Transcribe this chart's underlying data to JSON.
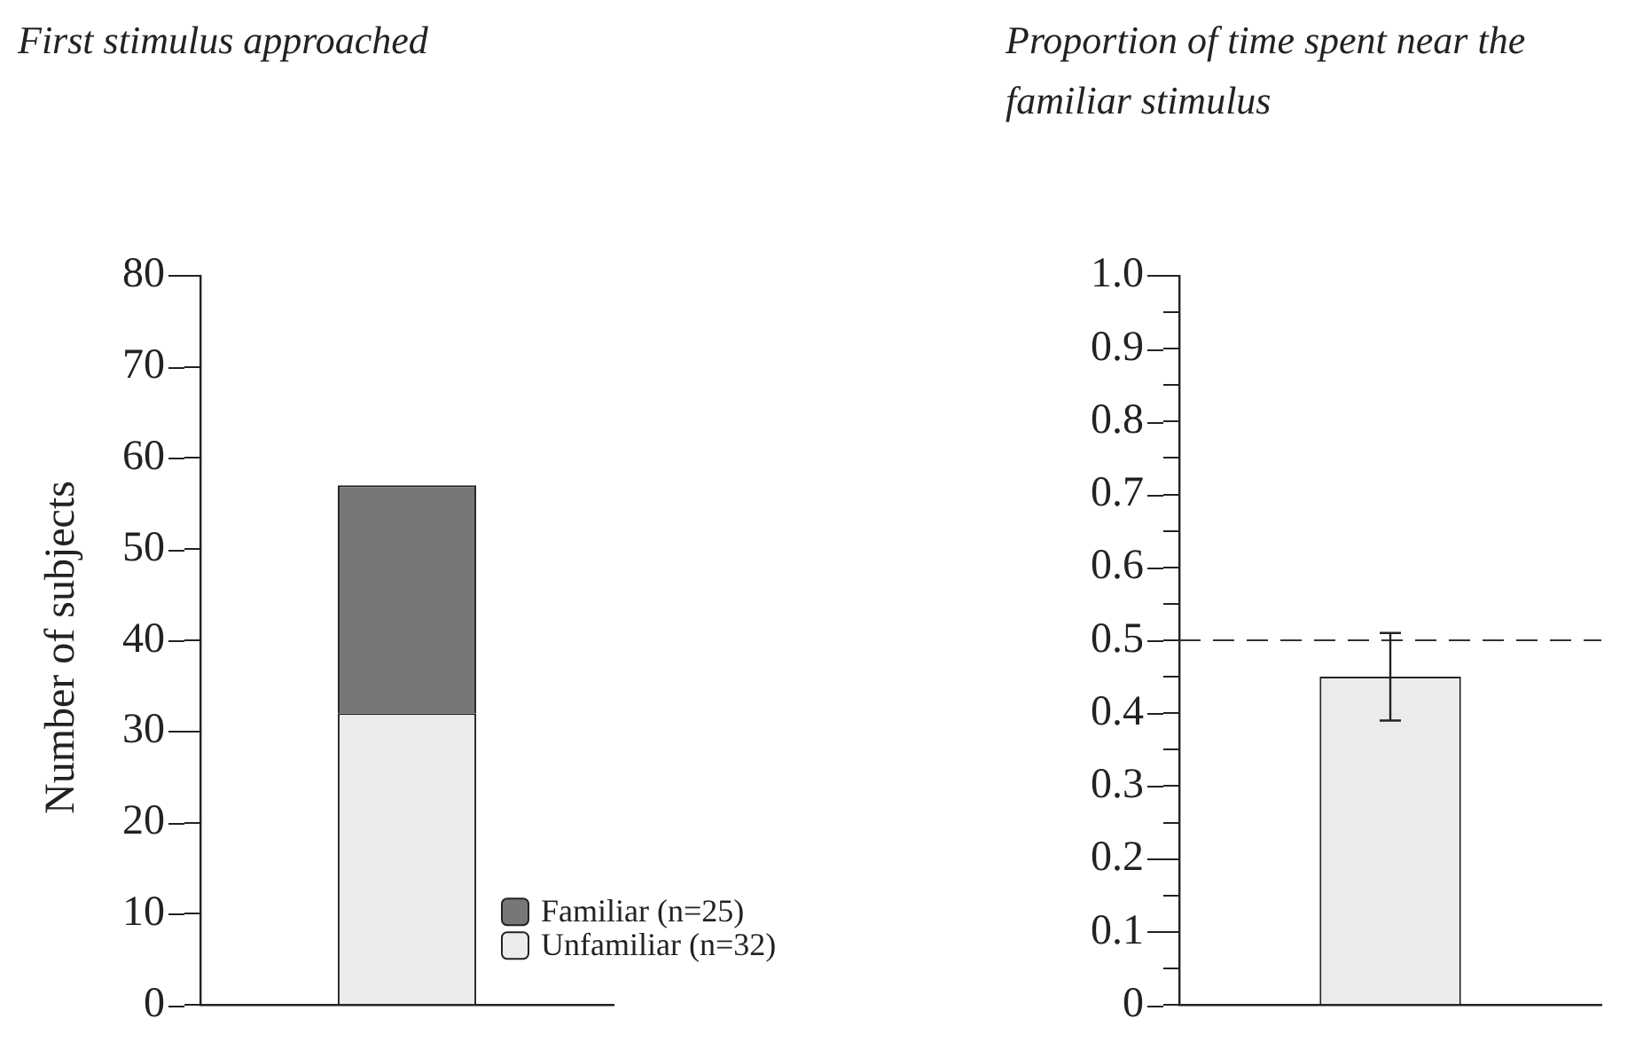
{
  "chart_data": [
    {
      "type": "bar",
      "title": "First stimulus approached",
      "ylabel": "Number of subjects",
      "categories": [
        null
      ],
      "stacked": true,
      "series": [
        {
          "name": "Unfamiliar (n=32)",
          "color": "#ebebeb",
          "values": [
            32
          ]
        },
        {
          "name": "Familiar (n=25)",
          "color": "#77777a",
          "values": [
            25
          ]
        }
      ],
      "ylim": [
        0,
        80
      ],
      "yticks": [
        0,
        10,
        20,
        30,
        40,
        50,
        60,
        70,
        80
      ],
      "legend": "bottom right"
    },
    {
      "type": "bar",
      "title": "Proportion of time spent near the familiar stimulus",
      "categories": [
        null
      ],
      "values": [
        0.45
      ],
      "errors": [
        0.06
      ],
      "color": "#ebebeb",
      "ylim": [
        0,
        1
      ],
      "yticks": [
        0,
        {
          "value": 0.05,
          "label": null
        },
        0.1,
        {
          "value": 0.15,
          "label": null
        },
        0.2,
        {
          "value": 0.25,
          "label": null
        },
        0.3,
        {
          "value": 0.35,
          "label": null
        },
        0.4,
        {
          "value": 0.45,
          "label": null
        },
        0.5,
        {
          "value": 0.55,
          "label": null
        },
        0.6,
        {
          "value": 0.65,
          "label": null
        },
        0.7,
        {
          "value": 0.75,
          "label": null
        },
        0.8,
        {
          "value": 0.85,
          "label": null
        },
        0.9,
        {
          "value": 0.95,
          "label": null
        },
        {
          "value": 1,
          "label": "1.0"
        }
      ],
      "ref_lines": [
        {
          "axis": "y",
          "value": 0.5,
          "line_style": "dashed"
        }
      ]
    }
  ]
}
